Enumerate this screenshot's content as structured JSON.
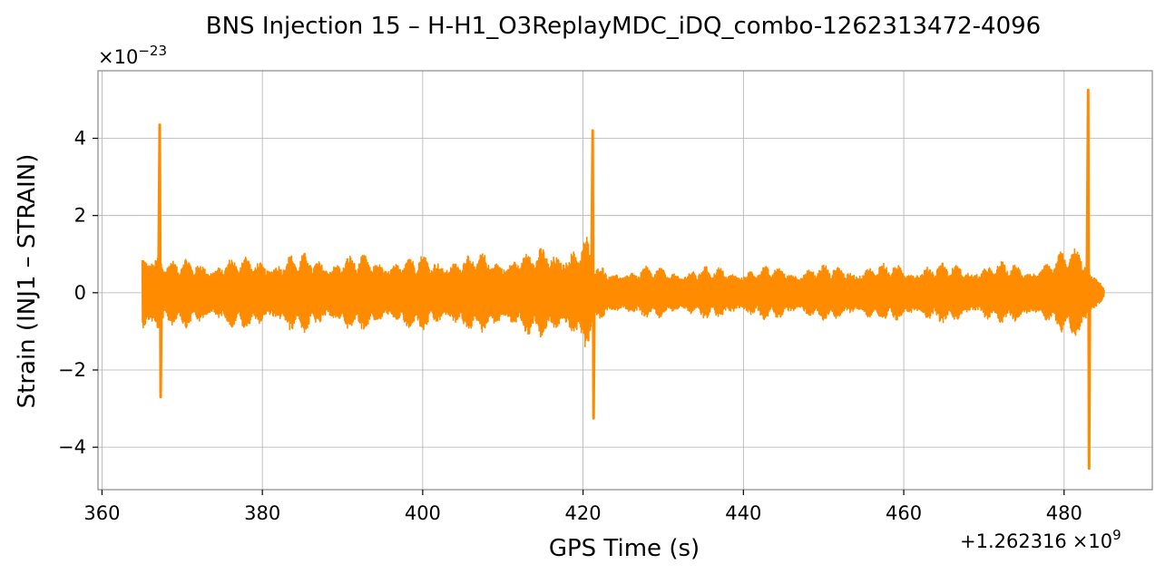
{
  "chart_data": {
    "type": "line",
    "title": "BNS Injection 15 – H-H1_O3ReplayMDC_iDQ_combo-1262313472-4096",
    "xlabel": "GPS Time (s)",
    "ylabel": "Strain (INJ1 – STRAIN)",
    "y_multiplier_base": "×10",
    "y_multiplier_exp": "−23",
    "x_offset_prefix": "+1.262316",
    "x_offset_mult": "×10",
    "x_offset_exp": "9",
    "xlim": [
      359.5,
      491.0
    ],
    "ylim": [
      -5.1,
      5.75
    ],
    "x_ticks": [
      360,
      380,
      400,
      420,
      440,
      460,
      480
    ],
    "x_tick_labels": [
      "360",
      "380",
      "400",
      "420",
      "440",
      "460",
      "480"
    ],
    "y_ticks": [
      -4,
      -2,
      0,
      2,
      4
    ],
    "y_tick_labels": [
      "−4",
      "−2",
      "0",
      "2",
      "4"
    ],
    "grid": true,
    "line_color": "#ff8c00",
    "series": [
      {
        "x_start": 365.0,
        "x_end": 485.0,
        "envelope": {
          "x": [
            365.0,
            366.0,
            367.0,
            368.0,
            375.0,
            385.0,
            395.0,
            405.0,
            412.0,
            418.0,
            420.5,
            421.5,
            423.0,
            430.0,
            440.0,
            450.0,
            460.0,
            470.0,
            478.0,
            482.0,
            483.5,
            484.2,
            485.0
          ],
          "amp": [
            1.15,
            1.3,
            1.45,
            0.9,
            0.95,
            1.05,
            1.0,
            1.05,
            1.1,
            1.35,
            1.5,
            0.75,
            0.7,
            0.7,
            0.7,
            0.75,
            0.8,
            0.8,
            0.85,
            1.4,
            0.7,
            0.55,
            0.1
          ]
        },
        "spikes": [
          {
            "x": 367.2,
            "max": 4.35,
            "min": -2.7
          },
          {
            "x": 421.2,
            "max": 4.2,
            "min": -3.25
          },
          {
            "x": 483.0,
            "max": 5.25,
            "min": -4.55
          }
        ]
      }
    ]
  }
}
